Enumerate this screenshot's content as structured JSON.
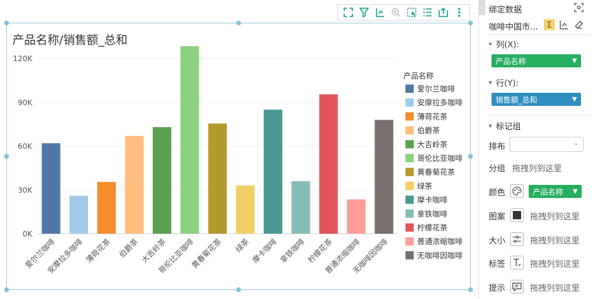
{
  "chart": {
    "title": "产品名称/销售额_总和",
    "legend_title": "产品名称"
  },
  "chart_data": {
    "type": "bar",
    "title": "产品名称/销售额_总和",
    "xlabel": "",
    "ylabel": "",
    "categories": [
      "爱尔兰咖啡",
      "安摩拉多咖啡",
      "薄荷花茶",
      "伯爵茶",
      "大吉岭茶",
      "哥伦比亚咖啡",
      "黄春菊花茶",
      "绿茶",
      "摩卡咖啡",
      "拿铁咖啡",
      "柠檬花茶",
      "普通浓缩咖啡",
      "无咖啡因咖啡"
    ],
    "values": [
      62000,
      26000,
      35500,
      67000,
      73000,
      128500,
      75500,
      33000,
      85000,
      36000,
      95500,
      23500,
      78000
    ],
    "colors": [
      "#4e79a7",
      "#a0cbe8",
      "#f28e2b",
      "#ffbe7d",
      "#59a14f",
      "#8cd17d",
      "#b6992d",
      "#f1ce63",
      "#499894",
      "#86bcb6",
      "#e15759",
      "#ff9d9a",
      "#79706e"
    ],
    "ylim": [
      0,
      130000
    ],
    "yticks": [
      0,
      30000,
      60000,
      90000,
      120000
    ],
    "ytick_labels": [
      "0K",
      "30K",
      "60K",
      "90K",
      "120K"
    ],
    "grid": true,
    "legend_position": "right"
  },
  "toolbar": {
    "icons": [
      "expand-icon",
      "filter-icon",
      "drill-icon",
      "zoom-icon",
      "select-icon",
      "list-icon",
      "export-icon",
      "more-icon"
    ]
  },
  "panel": {
    "title": "绑定数据",
    "dataset": "咖啡中国市...",
    "column_label": "列(X):",
    "column_field": "产品名称",
    "row_label": "行(Y):",
    "row_field": "销售额_总和",
    "marks_label": "标记组",
    "arrange_label": "排布",
    "group_label": "分组",
    "color_label": "颜色",
    "color_field": "产品名称",
    "pattern_label": "图案",
    "size_label": "大小",
    "tag_label": "标签",
    "tooltip_label": "提示",
    "drop_hint": "拖拽列到这里",
    "accent_green": "#27ae60",
    "accent_blue": "#2e8fbf"
  }
}
